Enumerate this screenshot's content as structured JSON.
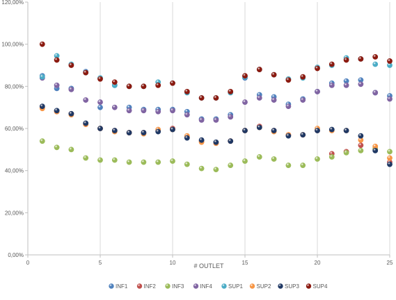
{
  "chart_data": {
    "type": "scatter",
    "xlabel": "# OUTLET",
    "ylabel": "",
    "xlim": [
      0,
      25
    ],
    "ylim": [
      0,
      120
    ],
    "x_ticks": [
      0,
      5,
      10,
      15,
      20,
      25
    ],
    "x_tick_labels": [
      "0",
      "5",
      "10",
      "15",
      "20",
      "25"
    ],
    "y_ticks": [
      0,
      20,
      40,
      60,
      80,
      100,
      120
    ],
    "y_tick_labels": [
      "0,00%",
      "20,00%",
      "40,00%",
      "60,00%",
      "80,00%",
      "100,00%",
      "120,00%"
    ],
    "grid": "vertical",
    "legend_position": "bottom",
    "x": [
      1,
      2,
      3,
      4,
      5,
      6,
      7,
      8,
      9,
      10,
      11,
      12,
      13,
      14,
      15,
      16,
      17,
      18,
      19,
      20,
      21,
      22,
      23,
      24,
      25
    ],
    "series": [
      {
        "name": "INF1",
        "color": "#4f81bd",
        "values": [
          85,
          79,
          79,
          87,
          70,
          80.5,
          70,
          69,
          69,
          69,
          68,
          64.5,
          64.5,
          66.5,
          84,
          76,
          75,
          71.5,
          74,
          77.5,
          81.5,
          82.5,
          83,
          77,
          75.5
        ]
      },
      {
        "name": "INF2",
        "color": "#c0504d",
        "values": [
          70,
          68,
          67,
          62,
          60,
          59,
          58,
          58,
          59,
          60,
          56,
          54,
          53,
          54,
          59,
          61,
          59,
          57,
          57,
          59,
          48,
          49,
          52,
          50,
          44
        ]
      },
      {
        "name": "INF3",
        "color": "#9bbb59",
        "values": [
          54,
          51,
          50,
          46,
          45,
          45,
          44,
          44,
          44,
          44.5,
          43,
          41,
          40.5,
          42.5,
          44.5,
          46.5,
          45.5,
          42.5,
          42.5,
          45.5,
          46.5,
          48.5,
          49.5,
          50.5,
          49
        ]
      },
      {
        "name": "INF4",
        "color": "#8064a2",
        "values": [
          84,
          80.5,
          78.5,
          73.5,
          72.5,
          70,
          68.5,
          68.5,
          68,
          68.5,
          66.5,
          64,
          64,
          65.5,
          72.5,
          74.5,
          73.5,
          70.5,
          73.5,
          77.5,
          80.5,
          80.5,
          81,
          77,
          74
        ]
      },
      {
        "name": "SUP1",
        "color": "#4bacc6",
        "values": [
          84.5,
          94.5,
          90.5,
          86.5,
          84,
          80.5,
          80,
          80,
          82,
          81.5,
          77,
          74.5,
          74.5,
          77,
          84.5,
          88,
          85.5,
          83.5,
          84,
          89,
          90,
          93.5,
          93,
          90.5,
          90
        ]
      },
      {
        "name": "SUP2",
        "color": "#f79646",
        "values": [
          69.5,
          68,
          66.5,
          62,
          60,
          58.5,
          58,
          57.5,
          59.5,
          59.5,
          56.5,
          53.5,
          53,
          54,
          59,
          60.5,
          58.5,
          57,
          57,
          60,
          59,
          59,
          54.5,
          51.5,
          46
        ]
      },
      {
        "name": "SUP3",
        "color": "#1f3864",
        "values": [
          70.5,
          68.5,
          67,
          62.5,
          60,
          59,
          58,
          58,
          58.5,
          59.5,
          55.5,
          54.5,
          53.5,
          54,
          59,
          60.5,
          59,
          56.5,
          57,
          59,
          59.5,
          59,
          56.5,
          49.5,
          43
        ]
      },
      {
        "name": "SUP4",
        "color": "#8b1a10",
        "values": [
          100,
          92.5,
          90,
          86.5,
          83.5,
          82,
          80,
          80,
          80.5,
          81.5,
          77.5,
          74.5,
          74.5,
          77.5,
          85,
          88,
          85.5,
          83,
          84.5,
          88.5,
          90.5,
          92.5,
          93,
          94,
          92
        ]
      }
    ]
  }
}
